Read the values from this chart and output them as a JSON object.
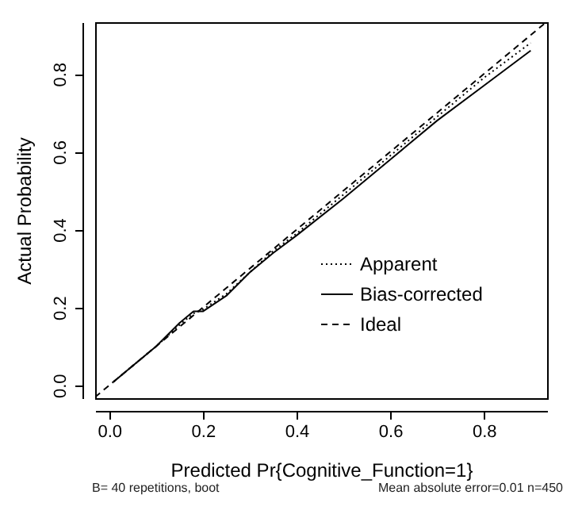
{
  "chart_data": {
    "type": "line",
    "xlabel": "Predicted Pr{Cognitive_Function=1}",
    "ylabel": "Actual Probability",
    "xlim": [
      -0.03,
      0.935
    ],
    "ylim": [
      -0.033,
      0.933
    ],
    "xticks": [
      {
        "value": 0,
        "label": "0.0"
      },
      {
        "value": 0.2,
        "label": "0.2"
      },
      {
        "value": 0.4,
        "label": "0.4"
      },
      {
        "value": 0.6,
        "label": "0.6"
      },
      {
        "value": 0.8,
        "label": "0.8"
      }
    ],
    "yticks": [
      {
        "value": 0,
        "label": "0.0"
      },
      {
        "value": 0.2,
        "label": "0.2"
      },
      {
        "value": 0.4,
        "label": "0.4"
      },
      {
        "value": 0.6,
        "label": "0.6"
      },
      {
        "value": 0.8,
        "label": "0.8"
      }
    ],
    "grid": false,
    "legend": "bottom right",
    "marker": "none",
    "series": [
      {
        "name": "Apparent",
        "color": "#000000",
        "line_style": "dotted",
        "x": [
          0.01,
          0.05,
          0.1,
          0.15,
          0.18,
          0.2,
          0.25,
          0.3,
          0.35,
          0.4,
          0.5,
          0.6,
          0.7,
          0.8,
          0.9
        ],
        "values": [
          0.01,
          0.05,
          0.1,
          0.155,
          0.185,
          0.195,
          0.235,
          0.29,
          0.345,
          0.39,
          0.49,
          0.59,
          0.69,
          0.79,
          0.88
        ]
      },
      {
        "name": "Bias-corrected",
        "color": "#000000",
        "line_style": "solid",
        "x": [
          0.01,
          0.05,
          0.1,
          0.15,
          0.18,
          0.2,
          0.25,
          0.3,
          0.35,
          0.4,
          0.5,
          0.6,
          0.7,
          0.8,
          0.9
        ],
        "values": [
          0.01,
          0.05,
          0.1,
          0.16,
          0.19,
          0.19,
          0.23,
          0.29,
          0.34,
          0.385,
          0.48,
          0.58,
          0.68,
          0.77,
          0.86
        ]
      },
      {
        "name": "Ideal",
        "color": "#000000",
        "line_style": "dashed",
        "x": [
          -0.03,
          0.93
        ],
        "values": [
          -0.03,
          0.93
        ]
      }
    ],
    "annotations": [
      "B= 40 repetitions, boot",
      "Mean absolute error=0.01 n=450"
    ]
  }
}
